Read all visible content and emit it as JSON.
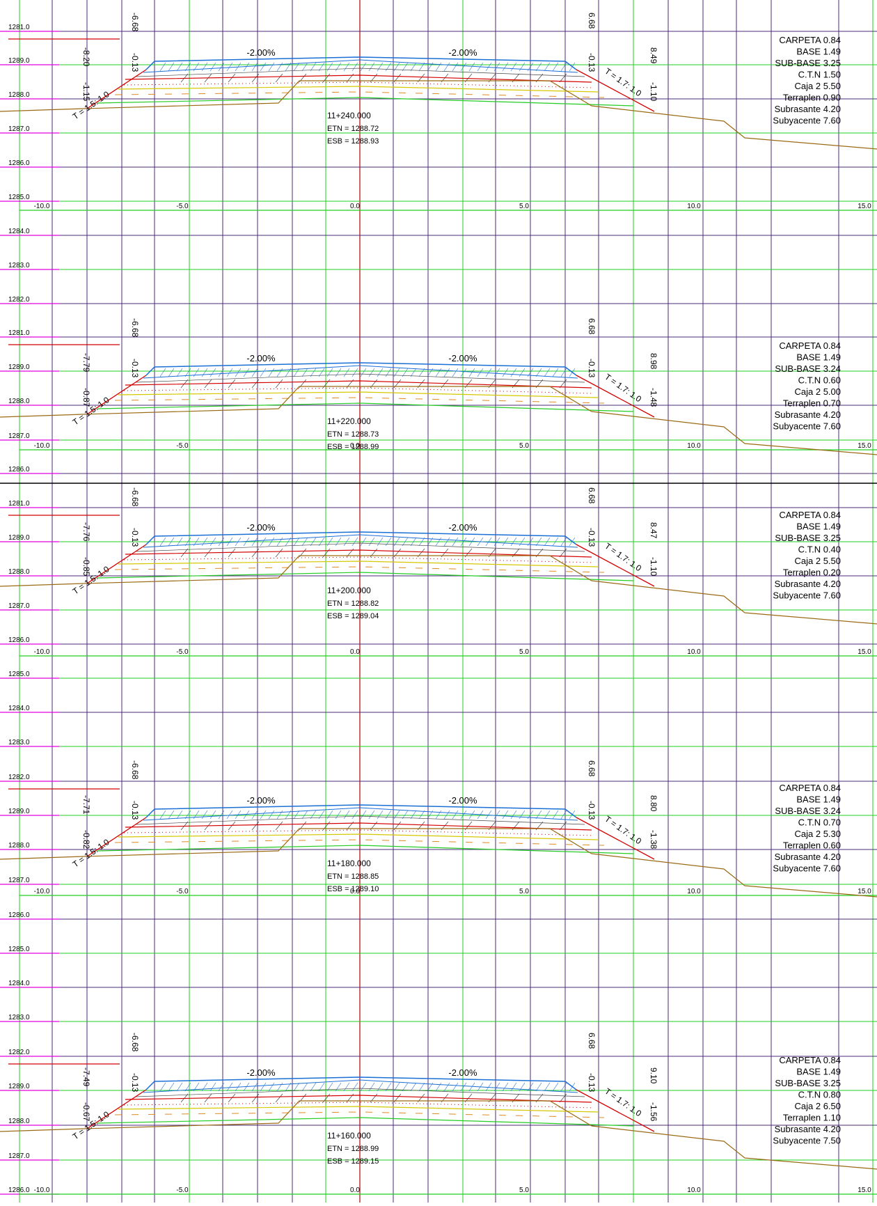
{
  "colors": {
    "grid_major": "#1fd11f",
    "grid_minor": "#4b2a7a",
    "centerline": "#b00000",
    "red_line": "#d40000",
    "terrain": "#9a6a12",
    "pavement": "#1a6fd6",
    "yellow": "#d4c800",
    "orange": "#e08a20",
    "green_line": "#22cc22",
    "magenta": "#e000e0"
  },
  "sections": [
    {
      "station": "11+240.000",
      "etn": "ETN = 1288.72",
      "esb": "ESB = 1288.93",
      "elev_labels": [
        "1281.0",
        "1289.0",
        "1288.0",
        "1287.0",
        "1286.0",
        "1285.0",
        "1284.0",
        "1283.0",
        "1282.0"
      ],
      "x_labels": [
        "-10.0",
        "-5.0",
        "0.0",
        "5.0",
        "10.0",
        "15.0"
      ],
      "slope_left": "-2.00%",
      "slope_right": "-2.00%",
      "left_offset": "-6.68",
      "left_crown": "-0.13",
      "right_offset": "6.68",
      "right_crown": "-0.13",
      "left_edge_dist": "-8.20",
      "left_edge_h": "-1.15",
      "right_edge_dist": "8.49",
      "right_edge_h": "-1.10",
      "talud_left": "T = 1.5: 1.0",
      "talud_right": "T = 1.7: 1.0",
      "legend": [
        "CARPETA 0.84",
        "BASE 1.49",
        "SUB-BASE 3.25",
        "C.T.N 1.50",
        "Caja 2 5.50",
        "Terraplen 0.90",
        "Subrasante 4.20",
        "Subyacente 7.60"
      ]
    },
    {
      "station": "11+220.000",
      "etn": "ETN = 1288.73",
      "esb": "ESB = 1288.99",
      "elev_labels": [
        "1281.0",
        "1289.0",
        "1288.0",
        "1287.0",
        "1286.0"
      ],
      "x_labels": [
        "-10.0",
        "-5.0",
        "0.0",
        "5.0",
        "10.0",
        "15.0"
      ],
      "slope_left": "-2.00%",
      "slope_right": "-2.00%",
      "left_offset": "-6.68",
      "left_crown": "-0.13",
      "right_offset": "6.68",
      "right_crown": "-0.13",
      "left_edge_dist": "-7.79",
      "left_edge_h": "-0.87",
      "right_edge_dist": "8.98",
      "right_edge_h": "-1.48",
      "talud_left": "T = 1.5: 1.0",
      "talud_right": "T = 1.7: 1.0",
      "legend": [
        "CARPETA 0.84",
        "BASE 1.49",
        "SUB-BASE 3.24",
        "C.T.N 0.60",
        "Caja 2 5.00",
        "Terraplen 0.70",
        "Subrasante 4.20",
        "Subyacente 7.60"
      ]
    },
    {
      "station": "11+200.000",
      "etn": "ETN = 1288.82",
      "esb": "ESB = 1289.04",
      "elev_labels": [
        "1281.0",
        "1289.0",
        "1288.0",
        "1287.0",
        "1286.0",
        "1285.0",
        "1284.0",
        "1283.0"
      ],
      "x_labels": [
        "-10.0",
        "-5.0",
        "0.0",
        "5.0",
        "10.0",
        "15.0"
      ],
      "slope_left": "-2.00%",
      "slope_right": "-2.00%",
      "left_offset": "-6.68",
      "left_crown": "-0.13",
      "right_offset": "6.68",
      "right_crown": "-0.13",
      "left_edge_dist": "-7.76",
      "left_edge_h": "-0.85",
      "right_edge_dist": "8.47",
      "right_edge_h": "-1.10",
      "talud_left": "T = 1.5: 1.0",
      "talud_right": "T = 1.7: 1.0",
      "legend": [
        "CARPETA 0.84",
        "BASE 1.49",
        "SUB-BASE 3.25",
        "C.T.N 0.40",
        "Caja 2 5.50",
        "Terraplen 0.20",
        "Subrasante 4.20",
        "Subyacente 7.60"
      ]
    },
    {
      "station": "11+180.000",
      "etn": "ETN = 1288.85",
      "esb": "ESB = 1289.10",
      "elev_labels": [
        "1282.0",
        "1289.0",
        "1288.0",
        "1287.0",
        "1286.0",
        "1285.0",
        "1284.0",
        "1283.0"
      ],
      "x_labels": [
        "-10.0",
        "-5.0",
        "0.0",
        "5.0",
        "10.0",
        "15.0"
      ],
      "slope_left": "-2.00%",
      "slope_right": "-2.00%",
      "left_offset": "-6.68",
      "left_crown": "-0.13",
      "right_offset": "6.68",
      "right_crown": "-0.13",
      "left_edge_dist": "-7.71",
      "left_edge_h": "-0.82",
      "right_edge_dist": "8.80",
      "right_edge_h": "-1.38",
      "talud_left": "T = 1.5: 1.0",
      "talud_right": "T = 1.7: 1.0",
      "legend": [
        "CARPETA 0.84",
        "BASE 1.49",
        "SUB-BASE 3.24",
        "C.T.N 0.70",
        "Caja 2 5.30",
        "Terraplen 0.60",
        "Subrasante 4.20",
        "Subyacente 7.60"
      ]
    },
    {
      "station": "11+160.000",
      "etn": "ETN = 1288.99",
      "esb": "ESB = 1289.15",
      "elev_labels": [
        "1282.0",
        "1289.0",
        "1288.0",
        "1287.0",
        "1286.0"
      ],
      "x_labels": [
        "-10.0",
        "-5.0",
        "0.0",
        "5.0",
        "10.0",
        "15.0"
      ],
      "slope_left": "-2.00%",
      "slope_right": "-2.00%",
      "left_offset": "-6.68",
      "left_crown": "-0.13",
      "right_offset": "6.68",
      "right_crown": "-0.13",
      "left_edge_dist": "-7.49",
      "left_edge_h": "-0.67",
      "right_edge_dist": "9.10",
      "right_edge_h": "-1.56",
      "talud_left": "T = 1.5: 1.0",
      "talud_right": "T = 1.7: 1.0",
      "legend": [
        "CARPETA 0.84",
        "BASE 1.49",
        "SUB-BASE 3.25",
        "C.T.N 0.80",
        "Caja 2 6.50",
        "Terraplen 1.10",
        "Subrasante 4.20",
        "Subyacente 7.50"
      ]
    }
  ]
}
